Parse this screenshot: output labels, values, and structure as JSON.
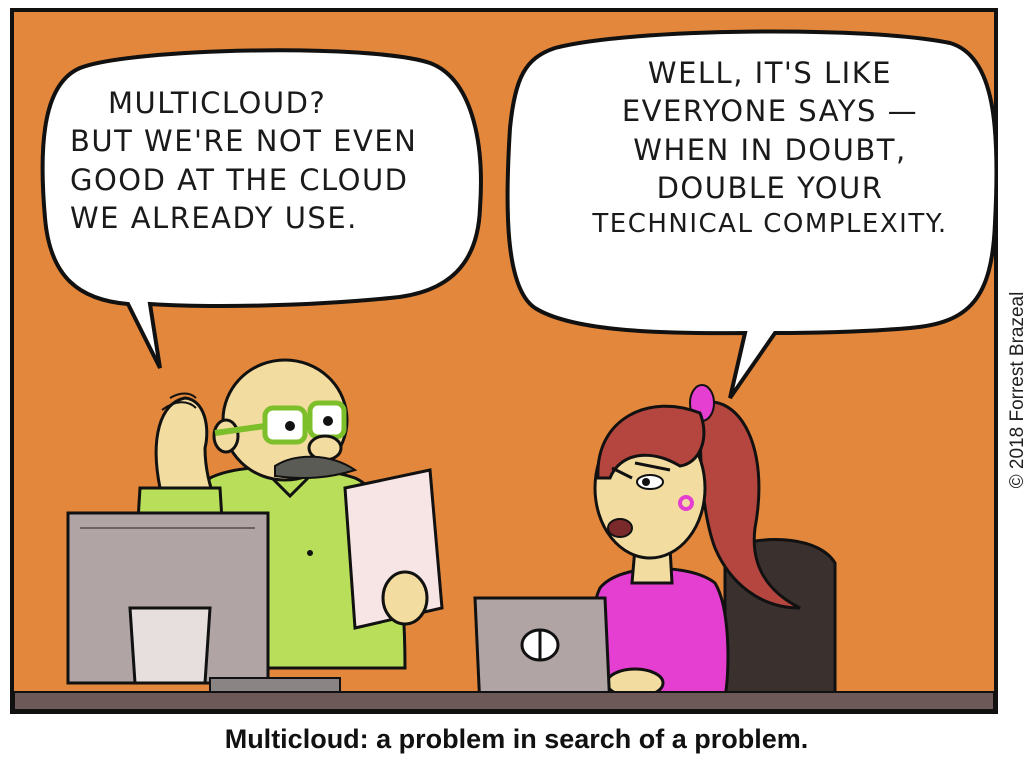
{
  "comic": {
    "left_bubble": [
      "MULTICLOUD?",
      "BUT WE'RE NOT EVEN",
      "GOOD AT THE CLOUD",
      "WE ALREADY USE."
    ],
    "right_bubble": [
      "WELL, IT'S LIKE",
      "EVERYONE SAYS —",
      "WHEN IN DOUBT,",
      "DOUBLE YOUR",
      "TECHNICAL COMPLEXITY."
    ],
    "caption": "Multicloud: a problem in search of a problem.",
    "credit": "© 2018 Forrest Brazeal"
  },
  "colors": {
    "background": "#e2873b",
    "outline": "#111111",
    "shirt_green": "#b9df5a",
    "shirt_magenta": "#e43fd0",
    "hair": "#b5463f",
    "skin": "#f3dca0",
    "monitor": "#b0a4a4",
    "desk": "#6d5a58"
  }
}
